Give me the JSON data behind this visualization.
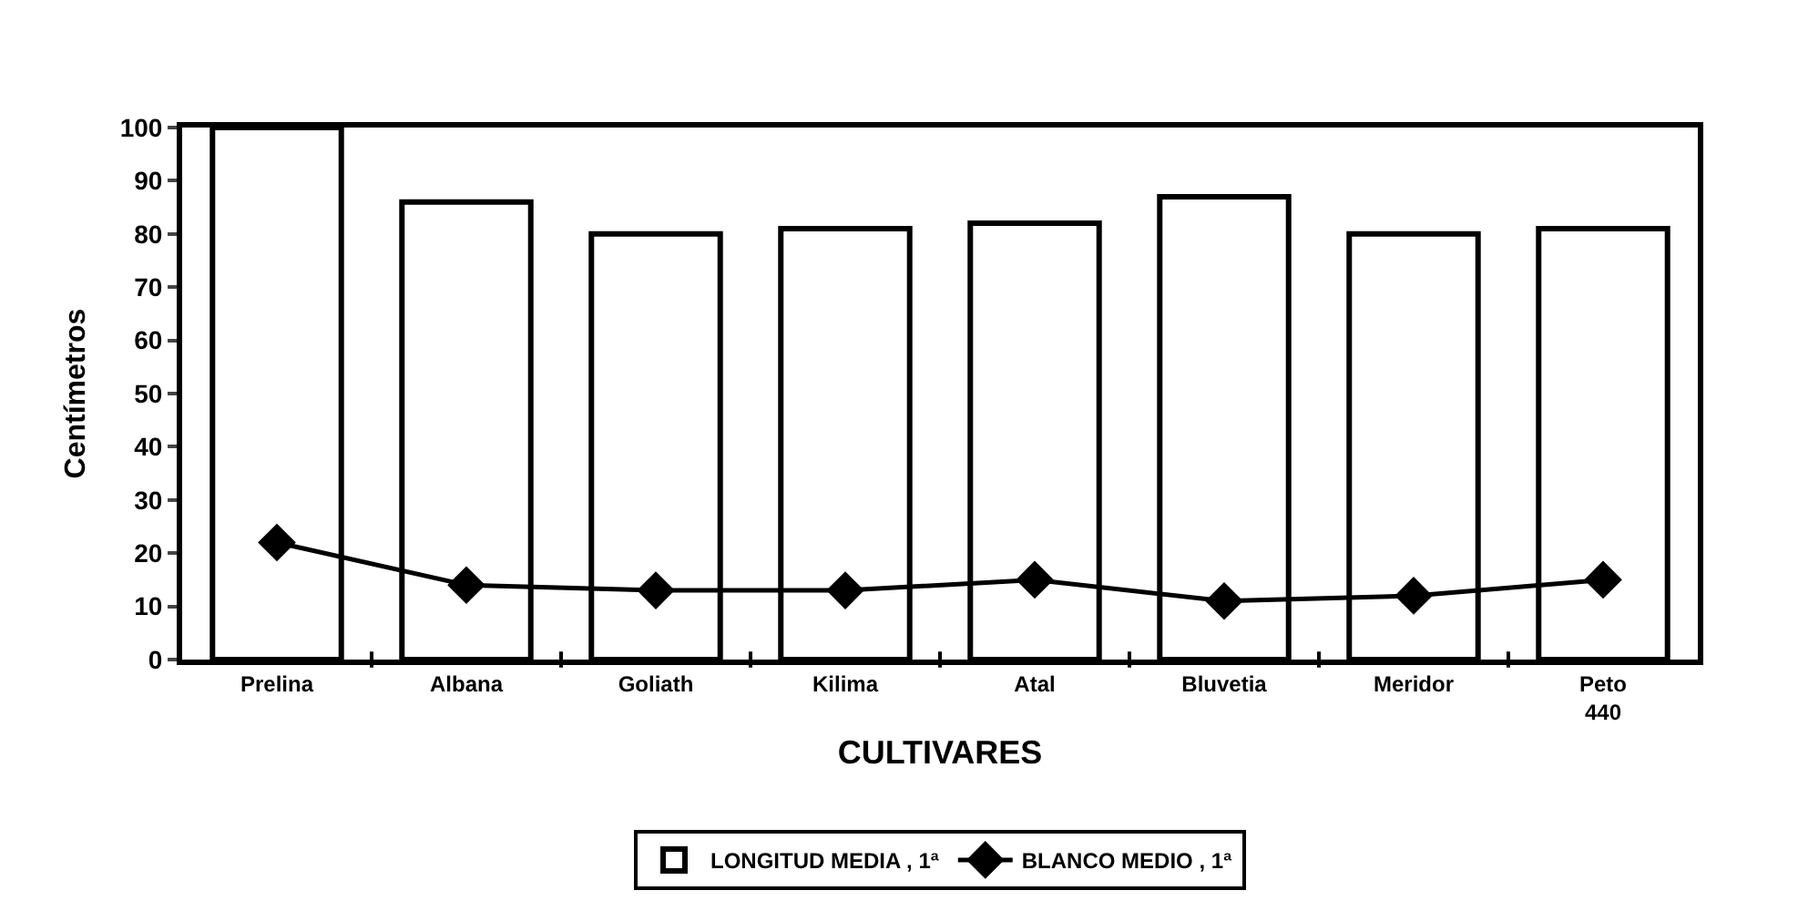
{
  "chart_data": {
    "type": "bar",
    "xlabel": "CULTIVARES",
    "ylabel": "Centímetros",
    "categories": [
      "Prelina",
      "Albana",
      "Goliath",
      "Kilima",
      "Atal",
      "Bluvetia",
      "Meridor",
      "Peto 440"
    ],
    "series": [
      {
        "name": "LONGITUD MEDIA , 1ª",
        "color": "#ffffff",
        "values": [
          100,
          86,
          80,
          81,
          82,
          87,
          80,
          81
        ]
      },
      {
        "name": "BLANCO MEDIO , 1ª",
        "color": "#000000",
        "type": "line",
        "marker": "diamond",
        "values": [
          22,
          14,
          13,
          13,
          15,
          11,
          12,
          15
        ]
      }
    ],
    "ylim": [
      0,
      100
    ],
    "yticks": [
      0,
      10,
      20,
      30,
      40,
      50,
      60,
      70,
      80,
      90,
      100
    ],
    "legend": "bottom"
  }
}
